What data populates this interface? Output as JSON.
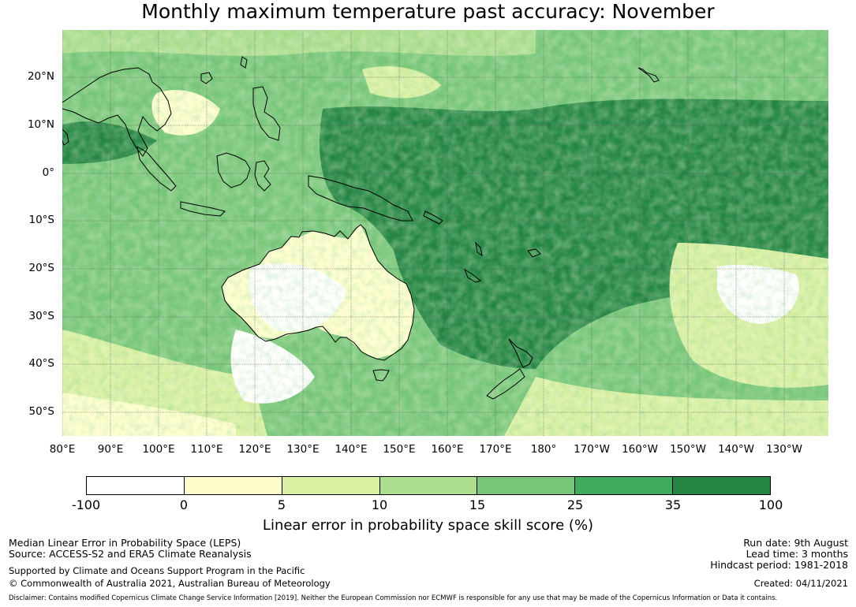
{
  "title": "Monthly maximum temperature past accuracy: November",
  "map": {
    "lat_labels": [
      "20°N",
      "10°N",
      "0°",
      "10°S",
      "20°S",
      "30°S",
      "40°S",
      "50°S"
    ],
    "lon_labels": [
      "80°E",
      "90°E",
      "100°E",
      "110°E",
      "120°E",
      "130°E",
      "140°E",
      "150°E",
      "160°E",
      "170°E",
      "180°",
      "170°W",
      "160°W",
      "150°W",
      "140°W",
      "130°W"
    ]
  },
  "colorbar": {
    "colors": [
      "#ffffff",
      "#fefecd",
      "#d9f0a3",
      "#addd8e",
      "#78c679",
      "#41ab5d",
      "#238443"
    ],
    "ticks": [
      "-100",
      "0",
      "5",
      "10",
      "15",
      "25",
      "35",
      "100"
    ],
    "label": "Linear error in probability space skill score (%)"
  },
  "footer": {
    "left_1": "Median Linear Error in Probability Space (LEPS)",
    "left_2": "Source: ACCESS-S2 and ERA5 Climate Reanalysis",
    "left_3": "Supported by Climate and Oceans Support Program in the Pacific",
    "left_4": "© Commonwealth of Australia 2021, Australian Bureau of Meteorology",
    "right_1": "Run date: 9th August",
    "right_2": "Lead time: 3 months",
    "right_3": "Hindcast period: 1981-2018",
    "right_4": "Created: 04/11/2021",
    "disclaimer": "Disclaimer: Contains modified Copernicus Climate Change Service Information [2019]. Neither the European Commission nor ECMWF is responsible for any use that may be made of the Copernicus Information or Data it contains."
  }
}
